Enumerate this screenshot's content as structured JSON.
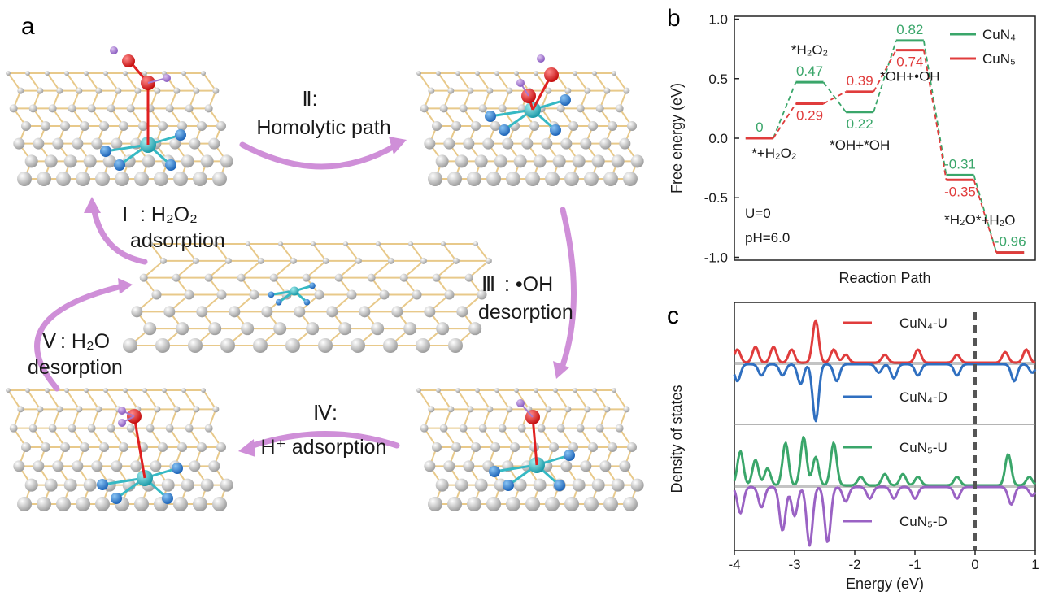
{
  "panel_a": {
    "letter": "a",
    "steps": [
      {
        "roman": "Ⅱ:",
        "lines": [
          "Homolytic path"
        ]
      },
      {
        "roman": "Ⅰ",
        "lines": [
          ": H₂O₂",
          "adsorption"
        ]
      },
      {
        "roman": "Ⅲ",
        "lines": [
          ": •OH",
          "desorption"
        ]
      },
      {
        "roman": "Ⅴ",
        "lines": [
          ": H₂O",
          "desorption"
        ]
      },
      {
        "roman": "Ⅳ:",
        "lines": [
          "H⁺ adsorption"
        ]
      }
    ],
    "colors": {
      "arrow": "#cf8fd8",
      "carbon": "#c4c4c4",
      "nitrogen": "#2f86d6",
      "copper": "#36b9c4",
      "oxygen": "#e02020",
      "hydrogen": "#a47ad0",
      "bond": "#e8c98a"
    }
  },
  "panel_b": {
    "letter": "b",
    "chart_data": {
      "type": "line",
      "ylabel": "Free energy (eV)",
      "xlabel": "Reaction Path",
      "ylim": [
        -1.0,
        1.0
      ],
      "yticks": [
        "1.0",
        "0.5",
        "0.0",
        "-0.5",
        "-1.0"
      ],
      "states": [
        "*+H₂O₂",
        "*H₂O₂",
        "*OH+*OH",
        "*OH+•OH",
        "*H₂O",
        "*+H₂O"
      ],
      "series": [
        {
          "name": "CuN₄",
          "color": "#3aa66a",
          "values": [
            0,
            0.47,
            0.22,
            0.82,
            -0.31,
            -0.96
          ],
          "labels": [
            "0",
            "0.47",
            "0.22",
            "0.82",
            "-0.31",
            "-0.96"
          ]
        },
        {
          "name": "CuN₅",
          "color": "#e03c3c",
          "values": [
            0,
            0.29,
            0.39,
            0.74,
            -0.35,
            -0.96
          ],
          "labels": [
            "",
            "0.29",
            "0.39",
            "0.74",
            "-0.35",
            ""
          ]
        }
      ],
      "annotations": [
        "U=0",
        "pH=6.0"
      ],
      "legend": "top-right"
    }
  },
  "panel_c": {
    "letter": "c",
    "chart_data": {
      "type": "line",
      "xlabel": "Energy (eV)",
      "ylabel": "Density of states",
      "xlim": [
        -4,
        1
      ],
      "xticks": [
        "-4",
        "-3",
        "-2",
        "-1",
        "0",
        "1"
      ],
      "series": [
        {
          "name": "CuN₄-U",
          "color": "#e03c3c",
          "peaks": [
            [
              -3.95,
              0.25
            ],
            [
              -3.65,
              0.3
            ],
            [
              -3.35,
              0.3
            ],
            [
              -3.05,
              0.25
            ],
            [
              -2.65,
              0.8
            ],
            [
              -2.35,
              0.25
            ],
            [
              -2.15,
              0.15
            ],
            [
              -1.5,
              0.15
            ],
            [
              -0.95,
              0.25
            ],
            [
              -0.3,
              0.15
            ],
            [
              0.5,
              0.2
            ],
            [
              0.85,
              0.25
            ]
          ]
        },
        {
          "name": "CuN₄-D",
          "color": "#2f6fc0",
          "peaks": [
            [
              -3.95,
              0.3
            ],
            [
              -3.55,
              0.2
            ],
            [
              -3.2,
              0.2
            ],
            [
              -2.9,
              0.35
            ],
            [
              -2.65,
              1.0
            ],
            [
              -2.3,
              0.3
            ],
            [
              -1.6,
              0.15
            ],
            [
              -1.35,
              0.25
            ],
            [
              -0.95,
              0.2
            ],
            [
              -0.3,
              0.2
            ],
            [
              0.65,
              0.3
            ],
            [
              0.95,
              0.15
            ]
          ]
        },
        {
          "name": "CuN₅-U",
          "color": "#3aa66a",
          "peaks": [
            [
              -3.9,
              0.6
            ],
            [
              -3.65,
              0.45
            ],
            [
              -3.45,
              0.3
            ],
            [
              -3.15,
              0.75
            ],
            [
              -2.85,
              0.85
            ],
            [
              -2.65,
              0.5
            ],
            [
              -2.35,
              0.75
            ],
            [
              -1.9,
              0.15
            ],
            [
              -1.5,
              0.2
            ],
            [
              -1.2,
              0.2
            ],
            [
              -0.95,
              0.15
            ],
            [
              -0.3,
              0.15
            ],
            [
              0.55,
              0.55
            ],
            [
              0.9,
              0.15
            ]
          ]
        },
        {
          "name": "CuN₅-D",
          "color": "#9a62c4",
          "peaks": [
            [
              -3.9,
              0.45
            ],
            [
              -3.55,
              0.35
            ],
            [
              -3.2,
              0.75
            ],
            [
              -3.0,
              0.5
            ],
            [
              -2.75,
              1.0
            ],
            [
              -2.45,
              0.95
            ],
            [
              -2.15,
              0.25
            ],
            [
              -1.75,
              0.2
            ],
            [
              -1.35,
              0.2
            ],
            [
              -1.0,
              0.2
            ],
            [
              -0.3,
              0.2
            ],
            [
              0.6,
              0.3
            ],
            [
              0.95,
              0.15
            ]
          ]
        }
      ],
      "fermi_level": 0
    }
  }
}
